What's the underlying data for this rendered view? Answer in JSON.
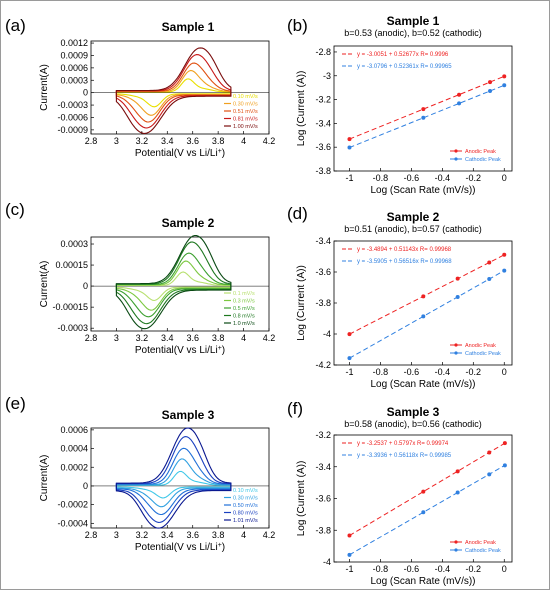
{
  "chart_data": [
    {
      "panel_label": "(a)",
      "type": "line",
      "title": "Sample 1",
      "xlabel": "Potential(V vs Li/Li",
      "xlabel_sup": "+",
      "xlabel_end": ")",
      "ylabel": "Current(A)",
      "xlim": [
        2.8,
        4.2
      ],
      "ylim": [
        -0.001,
        0.00125
      ],
      "xticks": [
        "2.8",
        "3",
        "3.2",
        "3.4",
        "3.6",
        "3.8",
        "4",
        "4.2"
      ],
      "yticks": [
        "-0.0009",
        "-0.0006",
        "-0.0003",
        "0",
        "0.0003",
        "0.0006",
        "0.0009",
        "0.0012"
      ],
      "legend_position": "bottom-right",
      "series": [
        {
          "name": "0.10 mV/s",
          "color": "#e8e000",
          "anodic_peak": [
            3.56,
            0.0003
          ],
          "cathodic_peak": [
            3.3,
            -0.0003
          ]
        },
        {
          "name": "0.30 mV/s",
          "color": "#f0a020",
          "anodic_peak": [
            3.58,
            0.00048
          ],
          "cathodic_peak": [
            3.28,
            -0.00048
          ]
        },
        {
          "name": "0.51 mV/s",
          "color": "#e05010",
          "anodic_peak": [
            3.6,
            0.00064
          ],
          "cathodic_peak": [
            3.26,
            -0.00062
          ]
        },
        {
          "name": "0.81 mV/s",
          "color": "#c81818",
          "anodic_peak": [
            3.62,
            0.00082
          ],
          "cathodic_peak": [
            3.25,
            -0.00074
          ]
        },
        {
          "name": "1.00 mV/s",
          "color": "#7a0c0c",
          "anodic_peak": [
            3.64,
            0.00096
          ],
          "cathodic_peak": [
            3.24,
            -0.00085
          ]
        }
      ]
    },
    {
      "panel_label": "(b)",
      "type": "scatter",
      "title": "Sample 1",
      "subtitle": "b=0.53 (anodic), b=0.52 (cathodic)",
      "xlabel": "Log (Scan Rate (mV/s))",
      "ylabel": "Log (Current (A))",
      "xlim": [
        -1.1,
        0.05
      ],
      "ylim": [
        -3.8,
        -2.75
      ],
      "xticks": [
        "-1",
        "-0.8",
        "-0.6",
        "-0.4",
        "-0.2",
        "0"
      ],
      "yticks": [
        "-3.8",
        "-3.6",
        "-3.4",
        "-3.2",
        "-3",
        "-2.8"
      ],
      "fit_labels": [
        "y = -3.0051 + 0.52677x   R= 0.9996",
        "y = -3.0796 + 0.52361x   R= 0.99965"
      ],
      "legend_position": "bottom-right",
      "series": [
        {
          "name": "Anodic Peak",
          "color": "#ee2222",
          "x": [
            -1.0,
            -0.523,
            -0.292,
            -0.092,
            0.0
          ],
          "y": [
            -3.532,
            -3.28,
            -3.159,
            -3.053,
            -3.005
          ]
        },
        {
          "name": "Cathodic Peak",
          "color": "#3080e0",
          "x": [
            -1.0,
            -0.523,
            -0.292,
            -0.092,
            0.0
          ],
          "y": [
            -3.603,
            -3.353,
            -3.232,
            -3.128,
            -3.08
          ]
        }
      ]
    },
    {
      "panel_label": "(c)",
      "type": "line",
      "title": "Sample 2",
      "xlabel": "Potential(V vs Li/Li",
      "xlabel_sup": "+",
      "xlabel_end": ")",
      "ylabel": "Current(A)",
      "xlim": [
        2.8,
        4.2
      ],
      "ylim": [
        -0.00032,
        0.00035
      ],
      "xticks": [
        "2.8",
        "3",
        "3.2",
        "3.4",
        "3.6",
        "3.8",
        "4",
        "4.2"
      ],
      "yticks": [
        "-0.0003",
        "-0.00015",
        "0",
        "0.00015",
        "0.0003"
      ],
      "legend_position": "bottom-right",
      "series": [
        {
          "name": "0.1 mV/s",
          "color": "#b8e070",
          "anodic_peak": [
            3.52,
            9e-05
          ],
          "cathodic_peak": [
            3.3,
            -9e-05
          ]
        },
        {
          "name": "0.3 mV/s",
          "color": "#7cc840",
          "anodic_peak": [
            3.54,
            0.00016
          ],
          "cathodic_peak": [
            3.28,
            -0.00015
          ]
        },
        {
          "name": "0.5 mV/s",
          "color": "#3ca030",
          "anodic_peak": [
            3.56,
            0.00021
          ],
          "cathodic_peak": [
            3.26,
            -0.00019
          ]
        },
        {
          "name": "0.8 mV/s",
          "color": "#1e7820",
          "anodic_peak": [
            3.58,
            0.00028
          ],
          "cathodic_peak": [
            3.25,
            -0.00023
          ]
        },
        {
          "name": "1.0 mV/s",
          "color": "#0a4a14",
          "anodic_peak": [
            3.6,
            0.00032
          ],
          "cathodic_peak": [
            3.24,
            -0.00026
          ]
        }
      ]
    },
    {
      "panel_label": "(d)",
      "type": "scatter",
      "title": "Sample 2",
      "subtitle": "b=0.51 (anodic), b=0.57 (cathodic)",
      "xlabel": "Log (Scan Rate (mV/s))",
      "ylabel": "Log (Current (A))",
      "xlim": [
        -1.1,
        0.05
      ],
      "ylim": [
        -4.2,
        -3.4
      ],
      "xticks": [
        "-1",
        "-0.8",
        "-0.6",
        "-0.4",
        "-0.2",
        "0"
      ],
      "yticks": [
        "-4.2",
        "-4",
        "-3.8",
        "-3.6",
        "-3.4"
      ],
      "fit_labels": [
        "y = -3.4894 + 0.51143x   R= 0.99968",
        "y = -3.5905 + 0.56516x   R= 0.99968"
      ],
      "legend_position": "bottom-right",
      "series": [
        {
          "name": "Anodic Peak",
          "color": "#ee2222",
          "x": [
            -1.0,
            -0.523,
            -0.301,
            -0.097,
            0.0
          ],
          "y": [
            -4.001,
            -3.757,
            -3.643,
            -3.539,
            -3.489
          ]
        },
        {
          "name": "Cathodic Peak",
          "color": "#3080e0",
          "x": [
            -1.0,
            -0.523,
            -0.301,
            -0.097,
            0.0
          ],
          "y": [
            -4.156,
            -3.886,
            -3.761,
            -3.645,
            -3.591
          ]
        }
      ]
    },
    {
      "panel_label": "(e)",
      "type": "line",
      "title": "Sample 3",
      "xlabel": "Potential(V vs Li/Li",
      "xlabel_sup": "+",
      "xlabel_end": ")",
      "ylabel": "Current(A)",
      "xlim": [
        2.8,
        4.2
      ],
      "ylim": [
        -0.00045,
        0.00062
      ],
      "xticks": [
        "2.8",
        "3",
        "3.2",
        "3.4",
        "3.6",
        "3.8",
        "4",
        "4.2"
      ],
      "yticks": [
        "-0.0004",
        "-0.0002",
        "0",
        "0.0002",
        "0.0004",
        "0.0006"
      ],
      "legend_position": "bottom-right",
      "series": [
        {
          "name": "0.10 mV/s",
          "color": "#40c8e8",
          "anodic_peak": [
            3.5,
            0.00014
          ],
          "cathodic_peak": [
            3.37,
            -0.00011
          ]
        },
        {
          "name": "0.30 mV/s",
          "color": "#30a0e0",
          "anodic_peak": [
            3.51,
            0.00026
          ],
          "cathodic_peak": [
            3.36,
            -0.00019
          ]
        },
        {
          "name": "0.50 mV/s",
          "color": "#2070d8",
          "anodic_peak": [
            3.52,
            0.00036
          ],
          "cathodic_peak": [
            3.36,
            -0.00026
          ]
        },
        {
          "name": "0.80 mV/s",
          "color": "#1a40c0",
          "anodic_peak": [
            3.53,
            0.00047
          ],
          "cathodic_peak": [
            3.35,
            -0.00033
          ]
        },
        {
          "name": "1.01 mV/s",
          "color": "#0a1890",
          "anodic_peak": [
            3.54,
            0.00055
          ],
          "cathodic_peak": [
            3.35,
            -0.00038
          ]
        }
      ]
    },
    {
      "panel_label": "(f)",
      "type": "scatter",
      "title": "Sample 3",
      "subtitle": "b=0.58 (anodic), b=0.56 (cathodic)",
      "xlabel": "Log (Scan Rate (mV/s))",
      "ylabel": "Log (Current (A))",
      "xlim": [
        -1.1,
        0.05
      ],
      "ylim": [
        -4.0,
        -3.2
      ],
      "xticks": [
        "-1",
        "-0.8",
        "-0.6",
        "-0.4",
        "-0.2",
        "0"
      ],
      "yticks": [
        "-4",
        "-3.8",
        "-3.6",
        "-3.4",
        "-3.2"
      ],
      "fit_labels": [
        "y = -3.2537 + 0.5797x   R= 0.99974",
        "y = -3.3936 + 0.56118x   R= 0.99985"
      ],
      "legend_position": "bottom-right",
      "series": [
        {
          "name": "Anodic Peak",
          "color": "#ee2222",
          "x": [
            -1.0,
            -0.523,
            -0.301,
            -0.097,
            0.004
          ],
          "y": [
            -3.833,
            -3.557,
            -3.429,
            -3.31,
            -3.251
          ]
        },
        {
          "name": "Cathodic Peak",
          "color": "#3080e0",
          "x": [
            -1.0,
            -0.523,
            -0.301,
            -0.097,
            0.004
          ],
          "y": [
            -3.955,
            -3.687,
            -3.562,
            -3.448,
            -3.391
          ]
        }
      ]
    }
  ]
}
